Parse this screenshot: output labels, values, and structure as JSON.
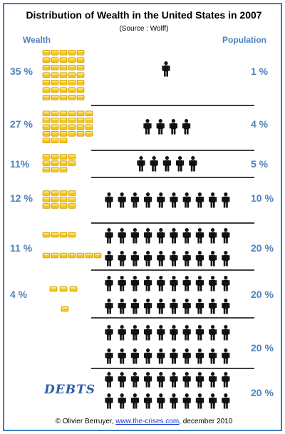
{
  "chart_data": {
    "type": "pictograph",
    "title": "Distribution of Wealth in the United States in 2007",
    "subtitle": "(Source : Wolff)",
    "wealth_header": "Wealth",
    "population_header": "Population",
    "rows": [
      {
        "wealth_label": "35 %",
        "population_label": "1 %",
        "wealth_pct": 35,
        "population_pct": 1
      },
      {
        "wealth_label": "27 %",
        "population_label": "4 %",
        "wealth_pct": 27,
        "population_pct": 4
      },
      {
        "wealth_label": "11%",
        "population_label": "5 %",
        "wealth_pct": 11,
        "population_pct": 5
      },
      {
        "wealth_label": "12 %",
        "population_label": "10 %",
        "wealth_pct": 12,
        "population_pct": 10
      },
      {
        "wealth_label": "11 %",
        "population_label": "20 %",
        "wealth_pct": 11,
        "population_pct": 20
      },
      {
        "wealth_label": "4 %",
        "population_label": "20 %",
        "wealth_pct": 4,
        "population_pct": 20
      },
      {
        "wealth_label": "",
        "population_label": "20 %",
        "wealth_pct": 0,
        "population_pct": 20
      },
      {
        "wealth_label": "",
        "population_label": "20 %",
        "wealth_pct": null,
        "population_pct": 20
      }
    ],
    "debts_label": "DEBTS",
    "colors": {
      "coin": "#f5c518",
      "coin_edge": "#b88a00",
      "person": "#111111",
      "label": "#4f81bd",
      "border": "#3d7fbf"
    }
  },
  "footer": {
    "prefix": "© Olivier Berruyer, ",
    "link": "www.the-crises.com",
    "suffix": ", december 2010"
  }
}
